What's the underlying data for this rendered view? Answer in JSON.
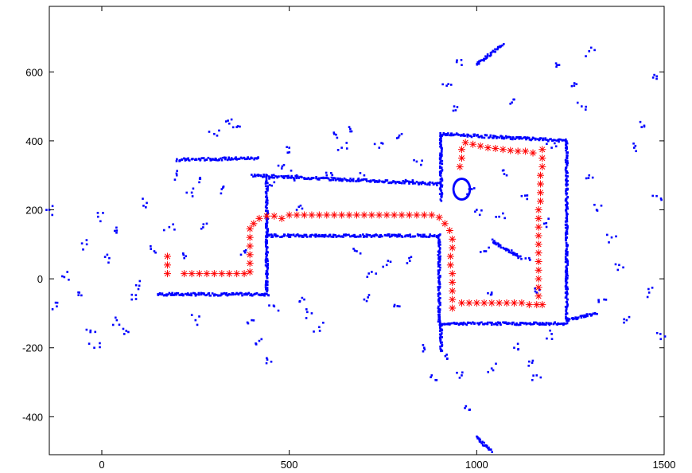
{
  "chart_data": {
    "type": "scatter",
    "title": "",
    "xlabel": "",
    "ylabel": "",
    "xlim": [
      -140,
      1500
    ],
    "ylim": [
      -510,
      790
    ],
    "x_ticks": [
      0,
      500,
      1000,
      1500
    ],
    "y_ticks": [
      -400,
      -200,
      0,
      200,
      400,
      600
    ],
    "grid": false,
    "legend": "none",
    "series": [
      {
        "marker": "dot",
        "color": "#0000ff",
        "segments": [
          [
            150,
            -45,
            445,
            -45
          ],
          [
            200,
            345,
            420,
            350
          ],
          [
            400,
            300,
            900,
            275
          ],
          [
            440,
            125,
            900,
            125
          ],
          [
            440,
            290,
            440,
            -40
          ],
          [
            900,
            125,
            900,
            -130
          ],
          [
            905,
            420,
            905,
            230
          ],
          [
            905,
            420,
            1240,
            400
          ],
          [
            1240,
            400,
            1240,
            -120
          ],
          [
            900,
            -130,
            1240,
            -130
          ],
          [
            905,
            -130,
            905,
            -210
          ],
          [
            1240,
            -120,
            1320,
            -100
          ],
          [
            1000,
            620,
            1070,
            680
          ],
          [
            1040,
            110,
            1120,
            60
          ],
          [
            1040,
            -500,
            1000,
            -460
          ]
        ],
        "points": [
          [
            -140,
            200
          ],
          [
            -120,
            -80
          ],
          [
            -100,
            5
          ],
          [
            -60,
            -40
          ],
          [
            -40,
            100
          ],
          [
            -30,
            -150
          ],
          [
            -20,
            -200
          ],
          [
            -10,
            180
          ],
          [
            20,
            60
          ],
          [
            40,
            140
          ],
          [
            40,
            -120
          ],
          [
            60,
            -160
          ],
          [
            80,
            -60
          ],
          [
            100,
            -20
          ],
          [
            120,
            220
          ],
          [
            140,
            80
          ],
          [
            180,
            150
          ],
          [
            200,
            300
          ],
          [
            220,
            60
          ],
          [
            240,
            250
          ],
          [
            250,
            -120
          ],
          [
            260,
            280
          ],
          [
            280,
            160
          ],
          [
            300,
            420
          ],
          [
            320,
            260
          ],
          [
            340,
            450
          ],
          [
            360,
            440
          ],
          [
            380,
            80
          ],
          [
            400,
            -120
          ],
          [
            420,
            -180
          ],
          [
            440,
            -230
          ],
          [
            460,
            -80
          ],
          [
            480,
            320
          ],
          [
            500,
            380
          ],
          [
            520,
            200
          ],
          [
            540,
            -60
          ],
          [
            560,
            -100
          ],
          [
            580,
            -140
          ],
          [
            600,
            300
          ],
          [
            620,
            420
          ],
          [
            640,
            380
          ],
          [
            660,
            440
          ],
          [
            680,
            80
          ],
          [
            700,
            -60
          ],
          [
            720,
            20
          ],
          [
            740,
            380
          ],
          [
            760,
            40
          ],
          [
            780,
            -80
          ],
          [
            800,
            420
          ],
          [
            820,
            60
          ],
          [
            840,
            340
          ],
          [
            860,
            -200
          ],
          [
            880,
            -280
          ],
          [
            920,
            560
          ],
          [
            940,
            500
          ],
          [
            960,
            620
          ],
          [
            980,
            260
          ],
          [
            1000,
            200
          ],
          [
            1020,
            80
          ],
          [
            1040,
            -40
          ],
          [
            1060,
            180
          ],
          [
            1080,
            300
          ],
          [
            1100,
            520
          ],
          [
            1120,
            240
          ],
          [
            1140,
            60
          ],
          [
            1160,
            -40
          ],
          [
            1180,
            160
          ],
          [
            1200,
            380
          ],
          [
            1220,
            620
          ],
          [
            1260,
            560
          ],
          [
            1280,
            500
          ],
          [
            1300,
            660
          ],
          [
            1300,
            300
          ],
          [
            1320,
            200
          ],
          [
            1340,
            -60
          ],
          [
            1360,
            120
          ],
          [
            1380,
            40
          ],
          [
            1400,
            -120
          ],
          [
            1420,
            380
          ],
          [
            1440,
            440
          ],
          [
            1460,
            -40
          ],
          [
            1480,
            240
          ],
          [
            1480,
            580
          ],
          [
            1490,
            -160
          ],
          [
            960,
            -280
          ],
          [
            980,
            -380
          ],
          [
            920,
            -220
          ],
          [
            1040,
            -260
          ],
          [
            1100,
            -200
          ],
          [
            1140,
            -240
          ],
          [
            1160,
            -280
          ],
          [
            1200,
            -160
          ],
          [
            520,
            300
          ],
          [
            700,
            300
          ],
          [
            820,
            280
          ],
          [
            460,
            280
          ]
        ]
      },
      {
        "marker": "asterisk",
        "color": "#ff0000",
        "points": [
          [
            175,
            65
          ],
          [
            175,
            40
          ],
          [
            175,
            15
          ],
          [
            220,
            15
          ],
          [
            240,
            15
          ],
          [
            260,
            15
          ],
          [
            280,
            15
          ],
          [
            300,
            15
          ],
          [
            320,
            15
          ],
          [
            340,
            15
          ],
          [
            360,
            15
          ],
          [
            380,
            15
          ],
          [
            395,
            20
          ],
          [
            395,
            45
          ],
          [
            395,
            70
          ],
          [
            395,
            95
          ],
          [
            395,
            120
          ],
          [
            395,
            145
          ],
          [
            405,
            160
          ],
          [
            420,
            175
          ],
          [
            440,
            182
          ],
          [
            460,
            182
          ],
          [
            480,
            175
          ],
          [
            500,
            185
          ],
          [
            520,
            185
          ],
          [
            540,
            185
          ],
          [
            560,
            185
          ],
          [
            580,
            185
          ],
          [
            600,
            185
          ],
          [
            620,
            185
          ],
          [
            640,
            185
          ],
          [
            660,
            185
          ],
          [
            680,
            185
          ],
          [
            700,
            185
          ],
          [
            720,
            185
          ],
          [
            740,
            185
          ],
          [
            760,
            185
          ],
          [
            780,
            185
          ],
          [
            800,
            185
          ],
          [
            820,
            185
          ],
          [
            840,
            185
          ],
          [
            860,
            185
          ],
          [
            880,
            185
          ],
          [
            900,
            178
          ],
          [
            915,
            160
          ],
          [
            928,
            140
          ],
          [
            935,
            115
          ],
          [
            935,
            90
          ],
          [
            930,
            65
          ],
          [
            930,
            40
          ],
          [
            935,
            15
          ],
          [
            935,
            -10
          ],
          [
            935,
            -35
          ],
          [
            935,
            -60
          ],
          [
            935,
            -85
          ],
          [
            960,
            -70
          ],
          [
            980,
            -70
          ],
          [
            1000,
            -70
          ],
          [
            1020,
            -70
          ],
          [
            1040,
            -70
          ],
          [
            1060,
            -70
          ],
          [
            1080,
            -70
          ],
          [
            1100,
            -70
          ],
          [
            1120,
            -70
          ],
          [
            1140,
            -75
          ],
          [
            1160,
            -75
          ],
          [
            1175,
            -75
          ],
          [
            1165,
            -50
          ],
          [
            1165,
            -25
          ],
          [
            1165,
            0
          ],
          [
            1165,
            25
          ],
          [
            1165,
            50
          ],
          [
            1165,
            75
          ],
          [
            1165,
            100
          ],
          [
            1165,
            125
          ],
          [
            1165,
            150
          ],
          [
            1165,
            175
          ],
          [
            1165,
            200
          ],
          [
            1170,
            225
          ],
          [
            1170,
            250
          ],
          [
            1170,
            275
          ],
          [
            1170,
            300
          ],
          [
            1175,
            325
          ],
          [
            1175,
            350
          ],
          [
            1175,
            375
          ],
          [
            1150,
            365
          ],
          [
            1130,
            370
          ],
          [
            1110,
            370
          ],
          [
            1090,
            372
          ],
          [
            1070,
            375
          ],
          [
            1050,
            378
          ],
          [
            1030,
            380
          ],
          [
            1010,
            385
          ],
          [
            990,
            390
          ],
          [
            970,
            395
          ],
          [
            960,
            375
          ],
          [
            960,
            350
          ],
          [
            955,
            325
          ]
        ]
      }
    ]
  }
}
